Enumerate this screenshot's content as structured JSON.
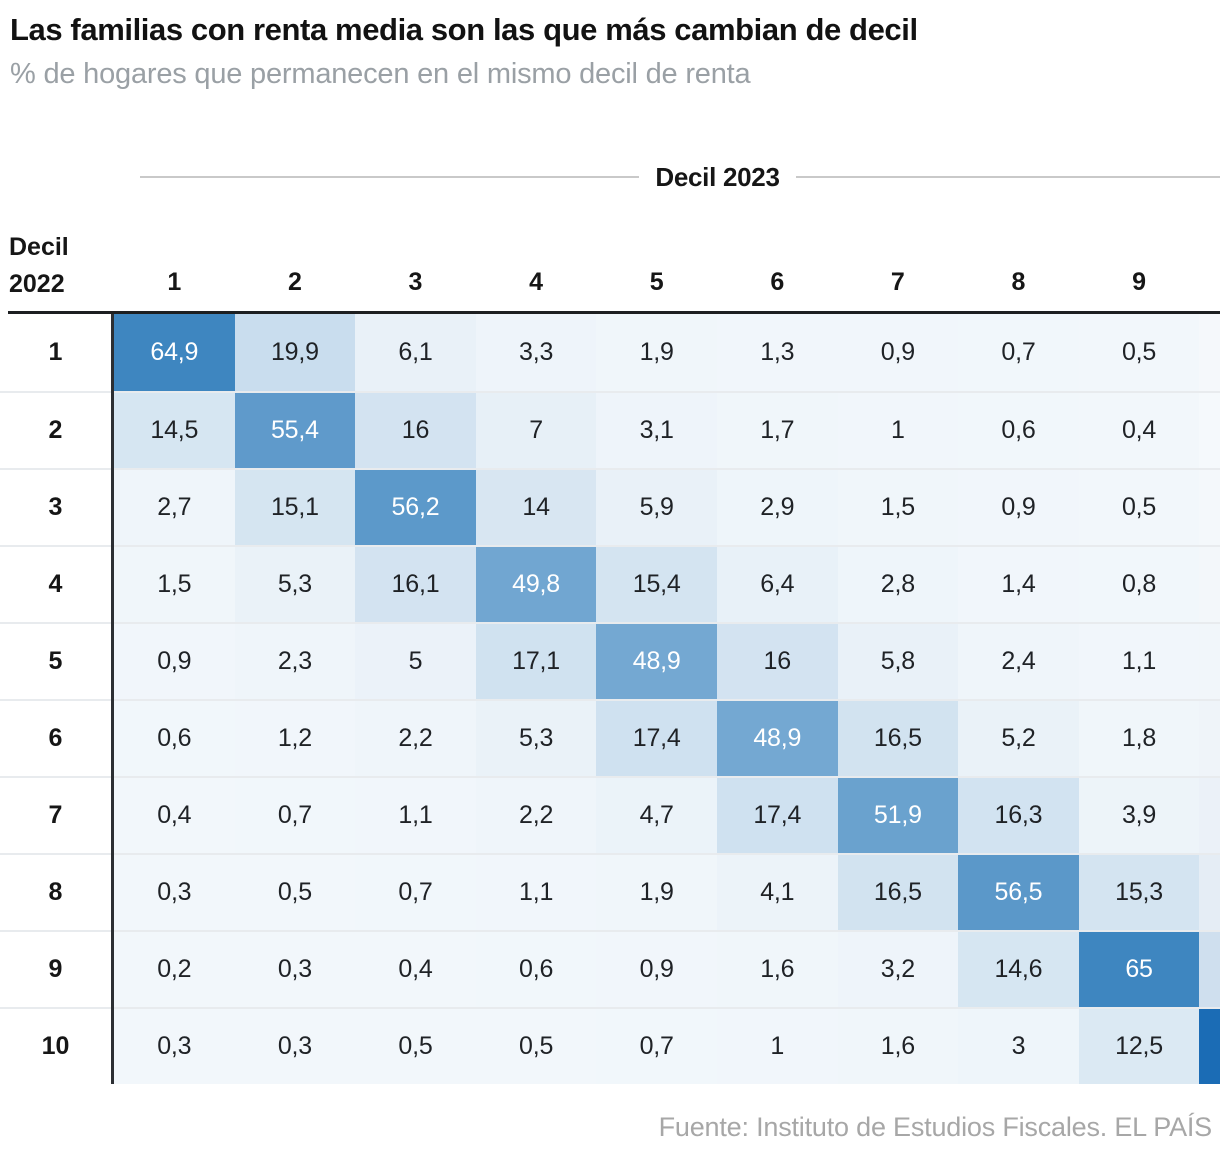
{
  "title": "Las familias con renta media son las que más cambian de decil",
  "subtitle": "% de hogares que permanecen en el mismo decil de renta",
  "source": "Fuente: Instituto de Estudios Fiscales. EL PAÍS",
  "colors": {
    "scale_min": "#f2f7fb",
    "scale_max": "#3e86c0",
    "scale_max_value": 65,
    "scale_gamma": 1.25,
    "white_text_threshold": 45,
    "header_line": "#c9c9c9",
    "top_rule": "#1d1f21",
    "vertical_divider": "#2c2f33",
    "row_separator": "#e8ebee",
    "subtitle_gray": "#9aa0a5",
    "source_gray": "#a7a7a7"
  },
  "chart_data": {
    "type": "heatmap",
    "title": "Las familias con renta media son las que más cambian de decil",
    "subtitle": "% de hogares que permanecen en el mismo decil de renta",
    "col_axis_label": "Decil 2023",
    "row_axis_label": "Decil 2022",
    "row_axis_label_lines": [
      "Decil",
      "2022"
    ],
    "columns": [
      "1",
      "2",
      "3",
      "4",
      "5",
      "6",
      "7",
      "8",
      "9"
    ],
    "value_note": "values are % with comma decimal separator; 10th column cut off at image edge (only cell color visible)",
    "rows": [
      {
        "label": "1",
        "values": [
          "64,9",
          "19,9",
          "6,1",
          "3,3",
          "1,9",
          "1,3",
          "0,9",
          "0,7",
          "0,5"
        ],
        "col10_color": "#f5f8fb"
      },
      {
        "label": "2",
        "values": [
          "14,5",
          "55,4",
          "16",
          "7",
          "3,1",
          "1,7",
          "1",
          "0,6",
          "0,4"
        ],
        "col10_color": "#f5f9fc"
      },
      {
        "label": "3",
        "values": [
          "2,7",
          "15,1",
          "56,2",
          "14",
          "5,9",
          "2,9",
          "1,5",
          "0,9",
          "0,5"
        ],
        "col10_color": "#f4f8fb"
      },
      {
        "label": "4",
        "values": [
          "1,5",
          "5,3",
          "16,1",
          "49,8",
          "15,4",
          "6,4",
          "2,8",
          "1,4",
          "0,8"
        ],
        "col10_color": "#f3f7fa"
      },
      {
        "label": "5",
        "values": [
          "0,9",
          "2,3",
          "5",
          "17,1",
          "48,9",
          "16",
          "5,8",
          "2,4",
          "1,1"
        ],
        "col10_color": "#f1f6fa"
      },
      {
        "label": "6",
        "values": [
          "0,6",
          "1,2",
          "2,2",
          "5,3",
          "17,4",
          "48,9",
          "16,5",
          "5,2",
          "1,8"
        ],
        "col10_color": "#eff4f9"
      },
      {
        "label": "7",
        "values": [
          "0,4",
          "0,7",
          "1,1",
          "2,2",
          "4,7",
          "17,4",
          "51,9",
          "16,3",
          "3,9"
        ],
        "col10_color": "#ebf1f8"
      },
      {
        "label": "8",
        "values": [
          "0,3",
          "0,5",
          "0,7",
          "1,1",
          "1,9",
          "4,1",
          "16,5",
          "56,5",
          "15,3"
        ],
        "col10_color": "#e5edf5"
      },
      {
        "label": "9",
        "values": [
          "0,2",
          "0,3",
          "0,4",
          "0,6",
          "0,9",
          "1,6",
          "3,2",
          "14,6",
          "65"
        ],
        "col10_color": "#cfdfee"
      },
      {
        "label": "10",
        "values": [
          "0,3",
          "0,3",
          "0,5",
          "0,5",
          "0,7",
          "1",
          "1,6",
          "3",
          "12,5"
        ],
        "col10_color": "#1b6cb5"
      }
    ]
  }
}
